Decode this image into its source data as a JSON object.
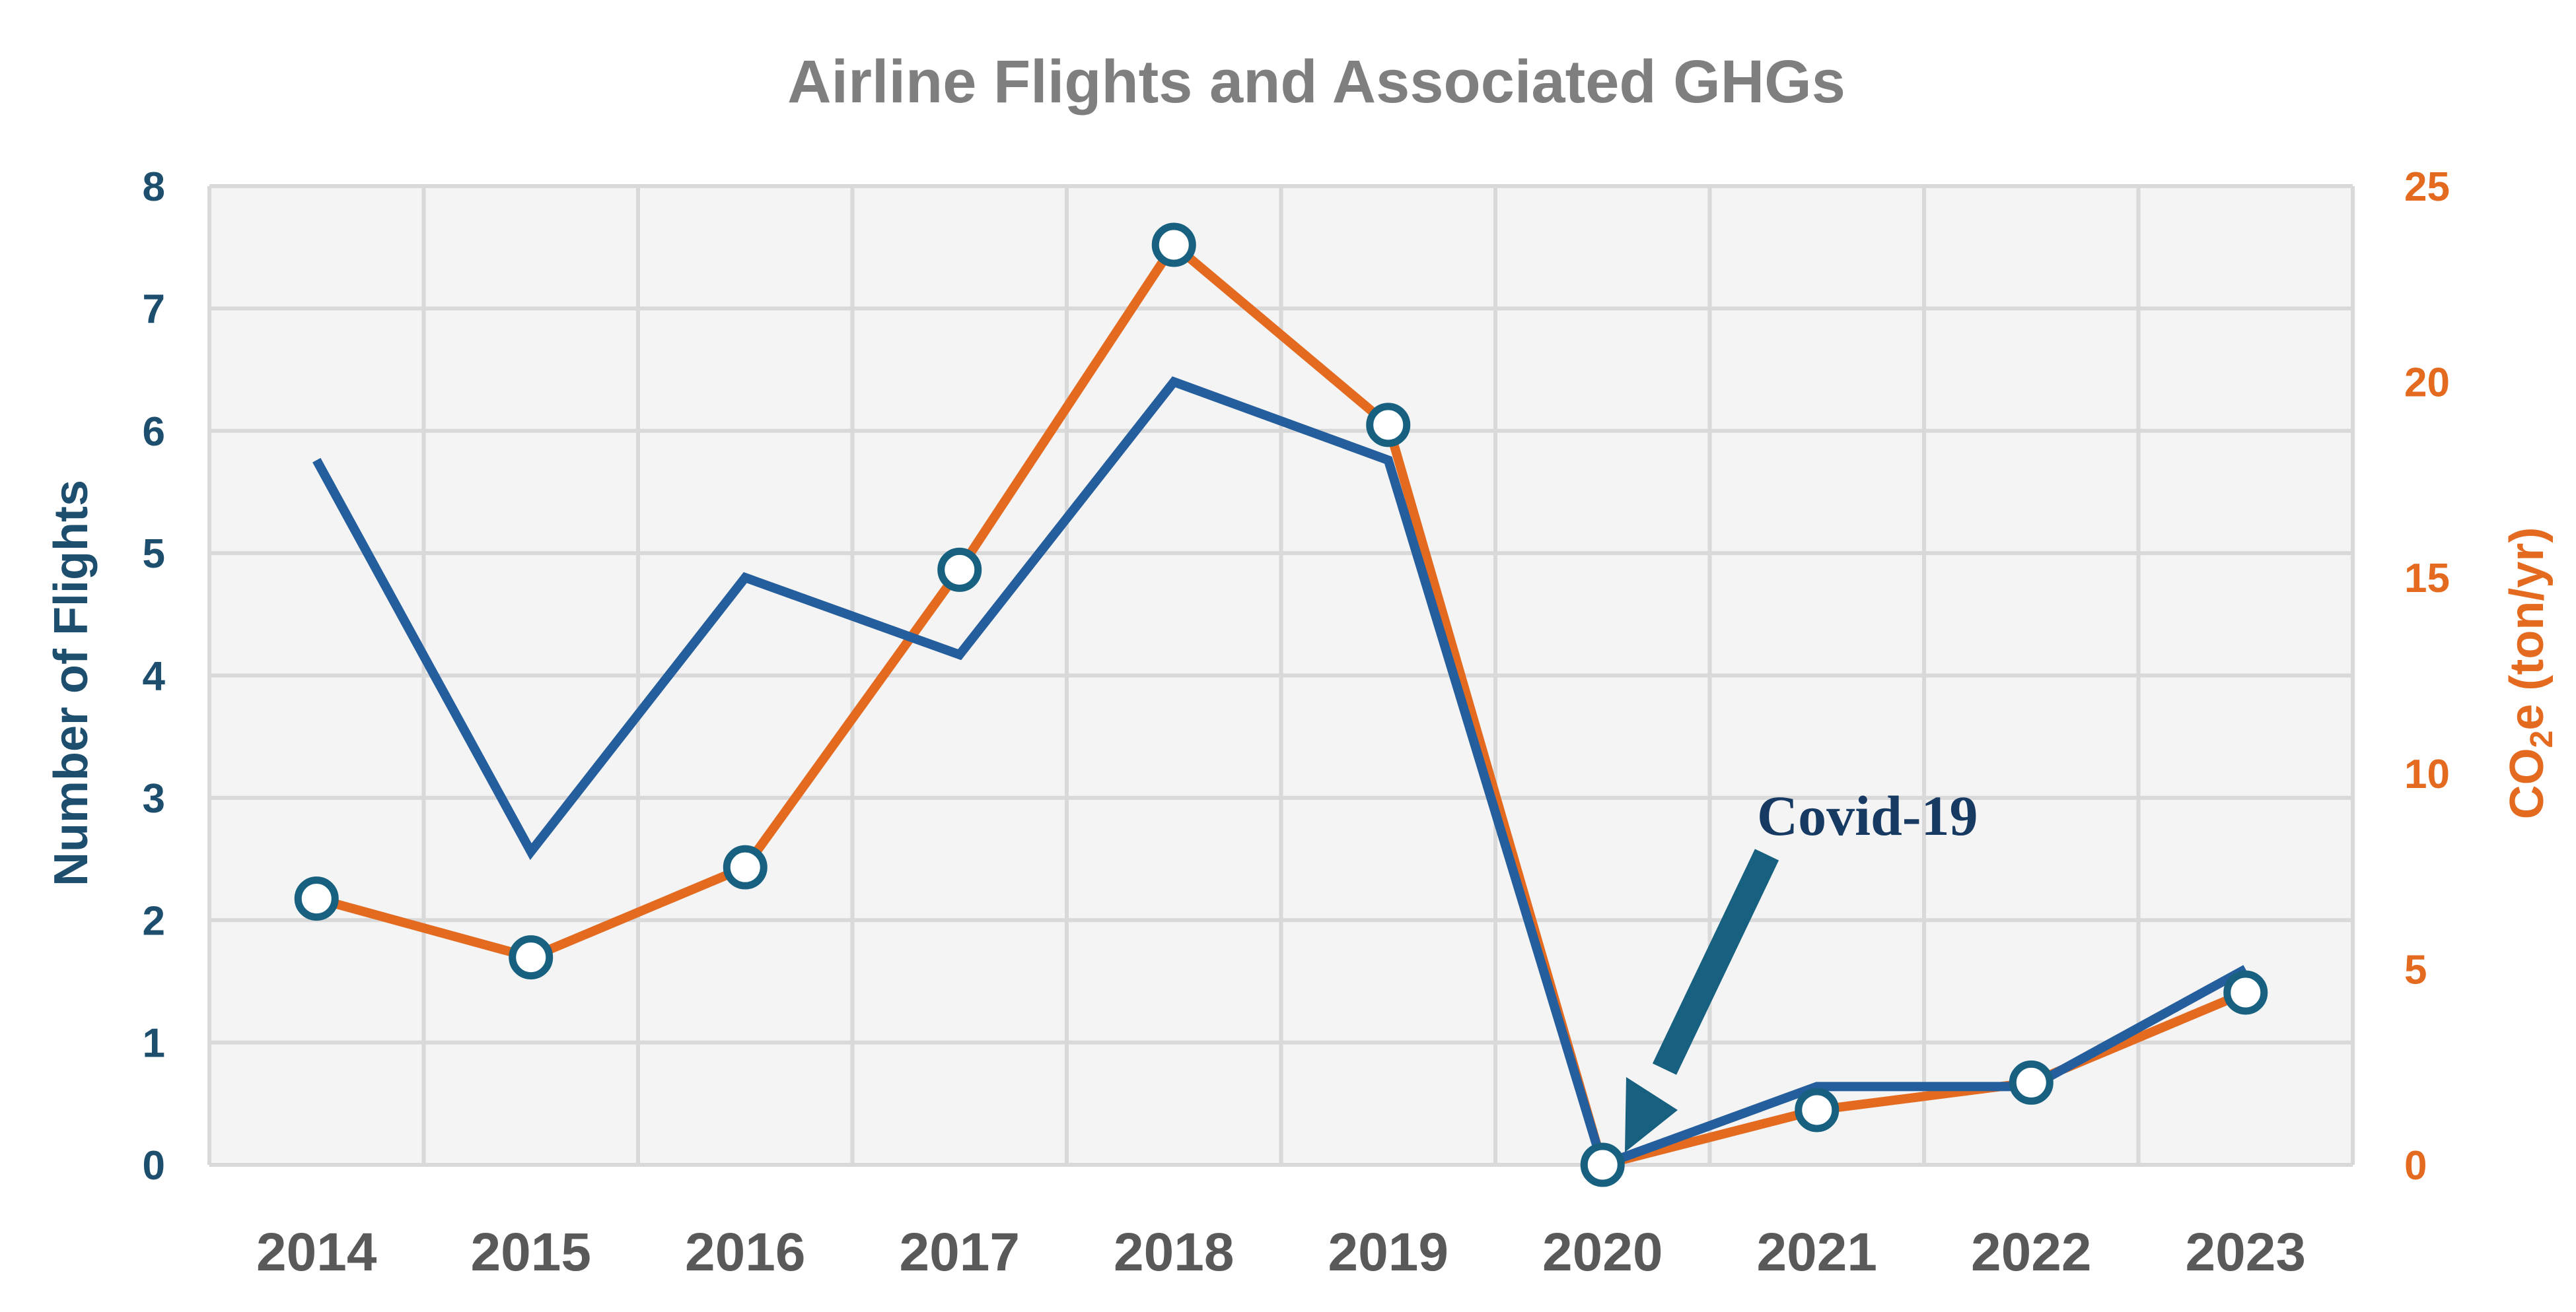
{
  "chart_data": {
    "type": "line",
    "title": "Airline Flights and Associated GHGs",
    "categories": [
      "2014",
      "2015",
      "2016",
      "2017",
      "2018",
      "2019",
      "2020",
      "2021",
      "2022",
      "2023"
    ],
    "ylabel_left": "Number of Flights",
    "ylabel_right_main": "CO",
    "ylabel_right_sub": "2",
    "ylabel_right_rest": "e (ton/yr)",
    "ylim_left": [
      0,
      8
    ],
    "yticks_left": [
      0,
      1,
      2,
      3,
      4,
      5,
      6,
      7,
      8
    ],
    "ylim_right": [
      0,
      25
    ],
    "yticks_right": [
      0,
      5,
      10,
      15,
      20,
      25
    ],
    "grid": true,
    "series": [
      {
        "name": "Number of Flights",
        "axis": "left",
        "color": "#245e9c",
        "markers": false,
        "values": [
          5.76,
          2.56,
          4.8,
          4.17,
          6.4,
          5.76,
          0,
          0.64,
          0.64,
          1.6
        ]
      },
      {
        "name": "CO2e (ton/yr)",
        "axis": "right",
        "color": "#e36a1f",
        "markers": true,
        "values": [
          6.8,
          5.3,
          7.6,
          15.2,
          23.5,
          18.9,
          0,
          1.4,
          2.1,
          4.4
        ]
      }
    ],
    "annotation": {
      "text": "Covid-19",
      "category": "2020"
    },
    "colors": {
      "left_axis": "#1d4e6e",
      "right_axis": "#e36a1f",
      "title": "#7f7f7f",
      "xticks": "#595959",
      "annotation": "#173a63",
      "arrow": "#17607f",
      "marker_edge": "#17607f",
      "plot_bg": "#f4f4f4",
      "grid": "#d9d9d9"
    }
  }
}
